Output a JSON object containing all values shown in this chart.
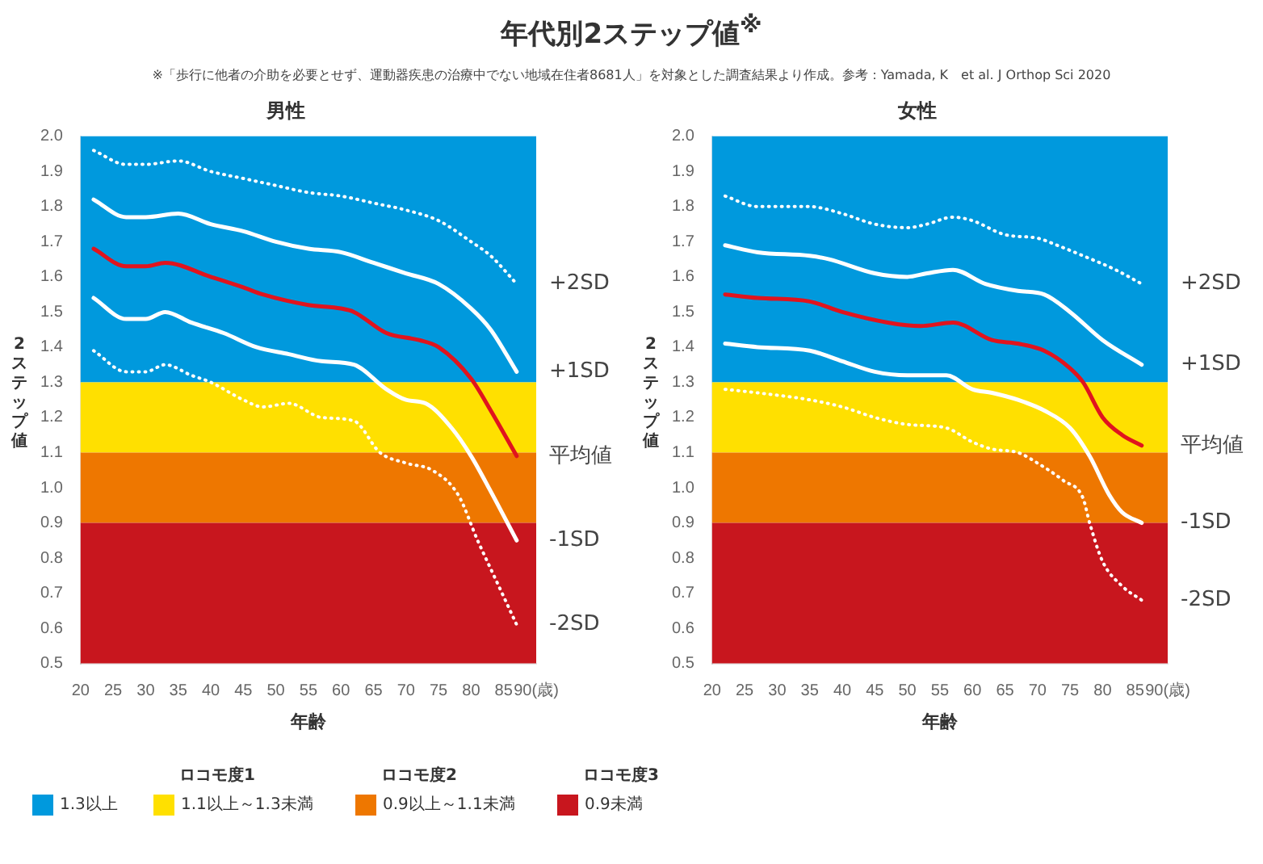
{
  "chart_data": [
    {
      "type": "other",
      "title": "年代別2ステップ値$^{※}$",
      "subtitle": "※「歩行に他者の介助を必要とせず、運動器疾患の治療中でない地域在住者8681人」を対象とした調査結果より作成。参考：Yamada, K　et al. J Orthop Sci 2020"
    },
    {
      "type": "line",
      "title": "男性",
      "xlabel": "年齢",
      "ylabel": "2ステップ値",
      "xlim": [
        20,
        90
      ],
      "xticks": [
        20,
        25,
        30,
        35,
        40,
        45,
        50,
        55,
        60,
        65,
        70,
        75,
        80,
        85,
        {
          "value": 90,
          "label": "90(歳)"
        }
      ],
      "ylim": [
        0.5,
        2.0
      ],
      "yticks": [
        {
          "value": 0.5,
          "label": "0.5"
        },
        {
          "value": 0.6,
          "label": "0.6"
        },
        {
          "value": 0.7,
          "label": "0.7"
        },
        {
          "value": 0.8,
          "label": "0.8"
        },
        {
          "value": 0.9,
          "label": "0.9"
        },
        {
          "value": 1.0,
          "label": "1.0"
        },
        {
          "value": 1.1,
          "label": "1.1"
        },
        {
          "value": 1.2,
          "label": "1.2"
        },
        {
          "value": 1.3,
          "label": "1.3"
        },
        {
          "value": 1.4,
          "label": "1.4"
        },
        {
          "value": 1.5,
          "label": "1.5"
        },
        {
          "value": 1.6,
          "label": "1.6"
        },
        {
          "value": 1.7,
          "label": "1.7"
        },
        {
          "value": 1.8,
          "label": "1.8"
        },
        {
          "value": 1.9,
          "label": "1.9"
        },
        {
          "value": 2.0,
          "label": "2.0"
        }
      ],
      "grid": false,
      "legend": "bottom",
      "marker": "none",
      "bands": [
        {
          "axis": "y",
          "from": 1.3,
          "to": 2.0,
          "label": "1.3以上",
          "color": "#0099dd"
        },
        {
          "axis": "y",
          "from": 1.1,
          "to": 1.3,
          "label": "1.1以上～1.3未満",
          "color": "#ffe000"
        },
        {
          "axis": "y",
          "from": 0.9,
          "to": 1.1,
          "label": "0.9以上～1.1未満",
          "color": "#ee7700"
        },
        {
          "axis": "y",
          "from": 0.5,
          "to": 0.9,
          "label": "0.9未満",
          "color": "#c8161e"
        }
      ],
      "annotations": [
        "ロコモ度1",
        "ロコモ度2",
        "ロコモ度3"
      ],
      "series": [
        {
          "name": "+2SD",
          "color": "#ffffff",
          "line_style": "dotted",
          "x": [
            22,
            27,
            30,
            35,
            40,
            45,
            50,
            55,
            60,
            65,
            70,
            75,
            80,
            83,
            87
          ],
          "values": [
            1.96,
            1.92,
            1.92,
            1.93,
            1.9,
            1.88,
            1.86,
            1.84,
            1.83,
            1.81,
            1.79,
            1.76,
            1.7,
            1.66,
            1.58
          ]
        },
        {
          "name": "+1SD",
          "color": "#ffffff",
          "line_style": "solid",
          "x": [
            22,
            27,
            30,
            35,
            40,
            45,
            50,
            55,
            60,
            65,
            70,
            75,
            80,
            83,
            87
          ],
          "values": [
            1.82,
            1.77,
            1.77,
            1.78,
            1.75,
            1.73,
            1.7,
            1.68,
            1.67,
            1.64,
            1.61,
            1.58,
            1.51,
            1.45,
            1.33
          ]
        },
        {
          "name": "平均値",
          "color": "#e0141e",
          "line_style": "solid",
          "x": [
            22,
            27,
            30,
            33,
            40,
            45,
            48,
            55,
            60,
            62,
            67,
            72,
            75,
            80,
            83,
            87
          ],
          "values": [
            1.68,
            1.63,
            1.63,
            1.64,
            1.6,
            1.57,
            1.55,
            1.52,
            1.51,
            1.5,
            1.44,
            1.42,
            1.4,
            1.31,
            1.22,
            1.09
          ]
        },
        {
          "name": "-1SD",
          "color": "#ffffff",
          "line_style": "solid",
          "x": [
            22,
            27,
            30,
            33,
            37,
            42,
            47,
            52,
            57,
            62,
            67,
            70,
            73,
            77,
            80,
            83,
            87
          ],
          "values": [
            1.54,
            1.48,
            1.48,
            1.5,
            1.47,
            1.44,
            1.4,
            1.38,
            1.36,
            1.35,
            1.28,
            1.25,
            1.24,
            1.17,
            1.09,
            0.99,
            0.85
          ]
        },
        {
          "name": "-2SD",
          "color": "#ffffff",
          "line_style": "dotted",
          "x": [
            22,
            27,
            30,
            33,
            37,
            40,
            45,
            48,
            52,
            57,
            62,
            66,
            70,
            74,
            78,
            81,
            84,
            87
          ],
          "values": [
            1.39,
            1.33,
            1.33,
            1.35,
            1.32,
            1.3,
            1.25,
            1.23,
            1.24,
            1.2,
            1.19,
            1.1,
            1.07,
            1.05,
            0.98,
            0.85,
            0.73,
            0.61
          ]
        }
      ]
    },
    {
      "type": "line",
      "title": "女性",
      "xlabel": "年齢",
      "ylabel": "2ステップ値",
      "xlim": [
        20,
        90
      ],
      "xticks": [
        20,
        25,
        30,
        35,
        40,
        45,
        50,
        55,
        60,
        65,
        70,
        75,
        80,
        85,
        {
          "value": 90,
          "label": "90(歳)"
        }
      ],
      "ylim": [
        0.5,
        2.0
      ],
      "yticks": [
        {
          "value": 0.5,
          "label": "0.5"
        },
        {
          "value": 0.6,
          "label": "0.6"
        },
        {
          "value": 0.7,
          "label": "0.7"
        },
        {
          "value": 0.8,
          "label": "0.8"
        },
        {
          "value": 0.9,
          "label": "0.9"
        },
        {
          "value": 1.0,
          "label": "1.0"
        },
        {
          "value": 1.1,
          "label": "1.1"
        },
        {
          "value": 1.2,
          "label": "1.2"
        },
        {
          "value": 1.3,
          "label": "1.3"
        },
        {
          "value": 1.4,
          "label": "1.4"
        },
        {
          "value": 1.5,
          "label": "1.5"
        },
        {
          "value": 1.6,
          "label": "1.6"
        },
        {
          "value": 1.7,
          "label": "1.7"
        },
        {
          "value": 1.8,
          "label": "1.8"
        },
        {
          "value": 1.9,
          "label": "1.9"
        },
        {
          "value": 2.0,
          "label": "2.0"
        }
      ],
      "grid": false,
      "legend": false,
      "marker": "none",
      "bands": [
        {
          "axis": "y",
          "from": 1.3,
          "to": 2.0,
          "color": "#0099dd"
        },
        {
          "axis": "y",
          "from": 1.1,
          "to": 1.3,
          "color": "#ffe000"
        },
        {
          "axis": "y",
          "from": 0.9,
          "to": 1.1,
          "color": "#ee7700"
        },
        {
          "axis": "y",
          "from": 0.5,
          "to": 0.9,
          "color": "#c8161e"
        }
      ],
      "series": [
        {
          "name": "+2SD",
          "color": "#ffffff",
          "line_style": "dotted",
          "x": [
            22,
            27,
            35,
            40,
            45,
            50,
            53,
            57,
            60,
            65,
            70,
            73,
            77,
            82,
            86
          ],
          "values": [
            1.83,
            1.8,
            1.8,
            1.78,
            1.75,
            1.74,
            1.75,
            1.77,
            1.76,
            1.72,
            1.71,
            1.69,
            1.66,
            1.62,
            1.58
          ]
        },
        {
          "name": "+1SD",
          "color": "#ffffff",
          "line_style": "solid",
          "x": [
            22,
            27,
            35,
            38,
            45,
            50,
            53,
            57,
            62,
            67,
            71,
            75,
            80,
            86
          ],
          "values": [
            1.69,
            1.67,
            1.66,
            1.65,
            1.61,
            1.6,
            1.61,
            1.62,
            1.58,
            1.56,
            1.55,
            1.5,
            1.42,
            1.35
          ]
        },
        {
          "name": "平均値",
          "color": "#e0141e",
          "line_style": "solid",
          "x": [
            22,
            27,
            35,
            40,
            47,
            52,
            57,
            63,
            67,
            71,
            75,
            77,
            80,
            83,
            86
          ],
          "values": [
            1.55,
            1.54,
            1.53,
            1.5,
            1.47,
            1.46,
            1.47,
            1.42,
            1.41,
            1.39,
            1.34,
            1.3,
            1.2,
            1.15,
            1.12
          ]
        },
        {
          "name": "-1SD",
          "color": "#ffffff",
          "line_style": "solid",
          "x": [
            22,
            27,
            35,
            40,
            45,
            50,
            56,
            60,
            63,
            67,
            71,
            75,
            78,
            81,
            83,
            86
          ],
          "values": [
            1.41,
            1.4,
            1.39,
            1.36,
            1.33,
            1.32,
            1.32,
            1.28,
            1.27,
            1.25,
            1.22,
            1.17,
            1.09,
            0.98,
            0.93,
            0.9
          ]
        },
        {
          "name": "-2SD",
          "color": "#ffffff",
          "line_style": "dotted",
          "x": [
            22,
            27,
            35,
            40,
            45,
            50,
            56,
            60,
            63,
            67,
            70,
            74,
            77,
            78,
            80,
            83,
            86
          ],
          "values": [
            1.28,
            1.27,
            1.25,
            1.23,
            1.2,
            1.18,
            1.17,
            1.13,
            1.11,
            1.1,
            1.07,
            1.02,
            0.97,
            0.9,
            0.79,
            0.72,
            0.68
          ]
        }
      ]
    }
  ]
}
